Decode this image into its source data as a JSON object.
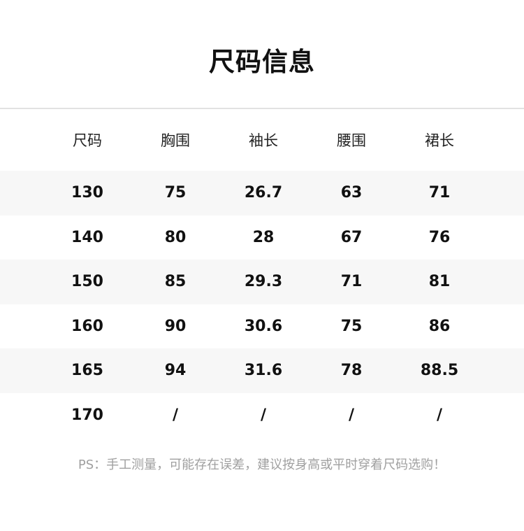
{
  "title": "尺码信息",
  "table": {
    "headers": [
      "尺码",
      "胸围",
      "袖长",
      "腰围",
      "裙长"
    ],
    "rows": [
      [
        "130",
        "75",
        "26.7",
        "63",
        "71"
      ],
      [
        "140",
        "80",
        "28",
        "67",
        "76"
      ],
      [
        "150",
        "85",
        "29.3",
        "71",
        "81"
      ],
      [
        "160",
        "90",
        "30.6",
        "75",
        "86"
      ],
      [
        "165",
        "94",
        "31.6",
        "78",
        "88.5"
      ],
      [
        "170",
        "/",
        "/",
        "/",
        "/"
      ]
    ]
  },
  "note": "PS：手工测量，可能存在误差，建议按身高或平时穿着尺码选购！"
}
